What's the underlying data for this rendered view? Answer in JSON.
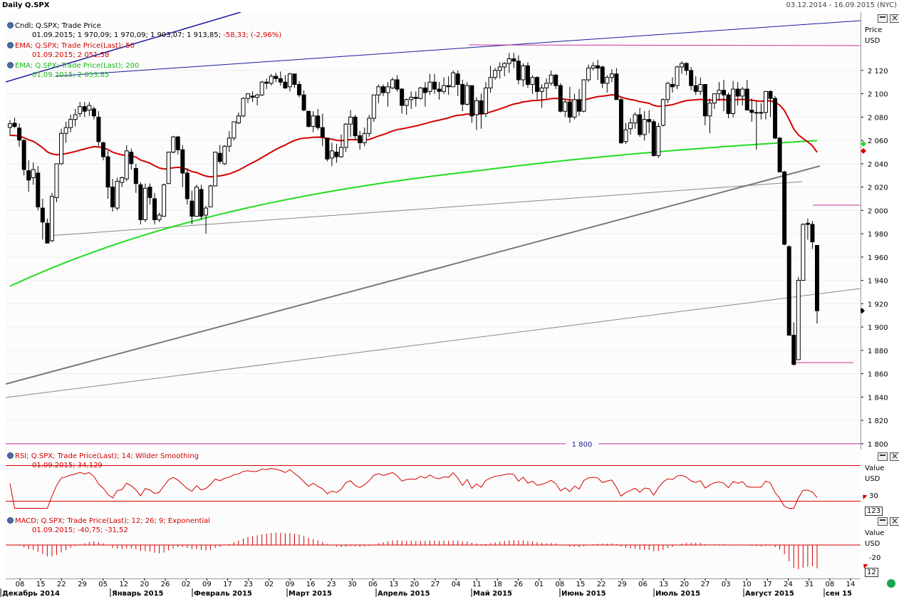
{
  "window": {
    "title": "Daily Q.SPX",
    "date_range": "03.12.2014 - 16.09.2015 (NYC)"
  },
  "colors": {
    "candle": "#000000",
    "ema50": "#d40000",
    "ema200": "#22dd22",
    "trend_blue": "#1a1a9e",
    "trend_gray": "#777777",
    "level_magenta": "#cc3399",
    "rsi": "#d40000",
    "macd": "#d40000"
  },
  "price_panel": {
    "legend": [
      {
        "name": "Cndl; Q.SPX; Trade Price",
        "values": "01.09.2015; 1 970,09; 1 970,09; 1 903,07; 1 913,85;",
        "change": "-58,33; (-2,96%)"
      },
      {
        "name": "EMA; Q.SPX; Trade Price(Last);  50",
        "values": "01.09.2015; 2 051,58"
      },
      {
        "name": "EMA; Q.SPX; Trade Price(Last);  200",
        "values": "01.09.2015; 2 053,85"
      }
    ],
    "axis_title_1": "Price",
    "axis_title_2": "USD",
    "level_label": "1 800"
  },
  "rsi_panel": {
    "legend_name": "RSI; Q.SPX; Trade Price(Last);  14; Wilder Smoothing",
    "legend_values": "01.09.2015; 34,129",
    "axis_title_1": "Value",
    "axis_title_2": "USD",
    "tick_label": "30",
    "current_label": "123"
  },
  "macd_panel": {
    "legend_name": "MACD; Q.SPX; Trade Price(Last);  12; 26; 9; Exponential",
    "legend_values": "01.09.2015; -40,75; -31,52",
    "axis_title_1": "Value",
    "axis_title_2": "USD",
    "tick_label": "-20",
    "current_label": "12"
  },
  "chart_data": {
    "type": "candlestick",
    "y_ticks": [
      "1 800",
      "1 820",
      "1 840",
      "1 860",
      "1 880",
      "1 900",
      "1 920",
      "1 940",
      "1 960",
      "1 980",
      "2 000",
      "2 020",
      "2 040",
      "2 060",
      "2 080",
      "2 100",
      "2 120"
    ],
    "ylim": [
      1795,
      2170
    ],
    "x_ticks": [
      "08",
      "15",
      "22",
      "29",
      "05",
      "12",
      "20",
      "26",
      "02",
      "09",
      "17",
      "23",
      "02",
      "09",
      "16",
      "23",
      "30",
      "06",
      "13",
      "20",
      "27",
      "04",
      "11",
      "18",
      "26",
      "01",
      "08",
      "15",
      "22",
      "29",
      "06",
      "13",
      "20",
      "27",
      "03",
      "10",
      "17",
      "24",
      "31",
      "08",
      "14"
    ],
    "x_months": [
      "Декабрь 2014",
      "Январь 2015",
      "Февраль 2015",
      "Март 2015",
      "Апрель 2015",
      "Май 2015",
      "Июнь 2015",
      "Июль 2015",
      "Август 2015",
      "сен 15"
    ],
    "candles": [
      [
        2071.2,
        2077.3,
        2064.3,
        2074.3
      ],
      [
        2074.8,
        2079.5,
        2070.8,
        2071.9
      ],
      [
        2070.6,
        2074.5,
        2054.5,
        2060.3
      ],
      [
        2060,
        2061,
        2030,
        2035
      ],
      [
        2034,
        2043,
        2016,
        2026
      ],
      [
        2028,
        2041,
        2022,
        2035
      ],
      [
        2032,
        2038,
        2000,
        2003
      ],
      [
        2002,
        2010,
        1975,
        1990
      ],
      [
        1989,
        1993,
        1972,
        1972
      ],
      [
        1974,
        2015,
        1973,
        2012
      ],
      [
        2011,
        2040,
        2007,
        2040
      ],
      [
        2040,
        2070,
        2039,
        2066
      ],
      [
        2066,
        2076,
        2058,
        2071
      ],
      [
        2071,
        2082,
        2067,
        2078
      ],
      [
        2078,
        2087,
        2072,
        2082
      ],
      [
        2083,
        2093,
        2080,
        2089
      ],
      [
        2089,
        2093,
        2080,
        2085
      ],
      [
        2086,
        2093,
        2081,
        2090
      ],
      [
        2087,
        2089,
        2078,
        2081
      ],
      [
        2080,
        2085,
        2055,
        2059
      ],
      [
        2058,
        2059,
        2043,
        2046
      ],
      [
        2046,
        2051,
        2010,
        2020
      ],
      [
        2020,
        2027,
        1999,
        2003
      ],
      [
        2002,
        2028,
        2000,
        2025
      ],
      [
        2024,
        2029,
        2020,
        2028
      ],
      [
        2027,
        2056,
        2025,
        2051
      ],
      [
        2050,
        2053,
        2035,
        2040
      ],
      [
        2036,
        2040,
        2015,
        2023
      ],
      [
        2022,
        2024,
        1988,
        1992
      ],
      [
        1992,
        2023,
        1990,
        2019
      ],
      [
        2020,
        2023,
        2005,
        2011
      ],
      [
        2010,
        2015,
        1988,
        1992
      ],
      [
        1992,
        1998,
        1990,
        1996
      ],
      [
        1995,
        2023,
        1995,
        2022
      ],
      [
        2023,
        2050,
        2023,
        2050
      ],
      [
        2050,
        2064,
        2049,
        2063
      ],
      [
        2063,
        2064,
        2048,
        2052
      ],
      [
        2052,
        2056,
        2020,
        2032
      ],
      [
        2032,
        2036,
        2005,
        2010
      ],
      [
        2008,
        2017,
        1988,
        1995
      ],
      [
        1995,
        2022,
        1995,
        2020
      ],
      [
        2018,
        2022,
        1992,
        1995
      ],
      [
        1996,
        2004,
        1980,
        2002
      ],
      [
        2003,
        2022,
        2003,
        2021
      ],
      [
        2021,
        2050,
        2021,
        2050
      ],
      [
        2049,
        2056,
        2040,
        2042
      ],
      [
        2040,
        2056,
        2039,
        2055
      ],
      [
        2055,
        2068,
        2050,
        2062
      ],
      [
        2062,
        2076,
        2060,
        2076
      ],
      [
        2075,
        2084,
        2074,
        2081
      ],
      [
        2081,
        2097,
        2080,
        2096
      ],
      [
        2096,
        2100,
        2092,
        2100
      ],
      [
        2098,
        2102,
        2093,
        2097
      ],
      [
        2097,
        2100,
        2090,
        2099
      ],
      [
        2099,
        2111,
        2098,
        2110
      ],
      [
        2110,
        2113,
        2104,
        2109
      ],
      [
        2109,
        2117,
        2107,
        2115
      ],
      [
        2115,
        2118,
        2110,
        2113
      ],
      [
        2113,
        2119,
        2107,
        2110
      ],
      [
        2110,
        2116,
        2104,
        2105
      ],
      [
        2106,
        2118,
        2102,
        2117
      ],
      [
        2117,
        2117,
        2105,
        2108
      ],
      [
        2108,
        2111,
        2097,
        2099
      ],
      [
        2099,
        2103,
        2085,
        2086
      ],
      [
        2085,
        2085,
        2071,
        2072
      ],
      [
        2072,
        2085,
        2067,
        2081
      ],
      [
        2081,
        2087,
        2069,
        2071
      ],
      [
        2071,
        2083,
        2055,
        2063
      ],
      [
        2062,
        2062,
        2042,
        2044
      ],
      [
        2045,
        2058,
        2038,
        2051
      ],
      [
        2050,
        2057,
        2041,
        2046
      ],
      [
        2046,
        2065,
        2045,
        2054
      ],
      [
        2054,
        2075,
        2050,
        2074
      ],
      [
        2074,
        2086,
        2063,
        2080
      ],
      [
        2080,
        2082,
        2060,
        2064
      ],
      [
        2064,
        2068,
        2052,
        2058
      ],
      [
        2058,
        2071,
        2055,
        2066
      ],
      [
        2066,
        2082,
        2063,
        2079
      ],
      [
        2079,
        2099,
        2076,
        2099
      ],
      [
        2099,
        2108,
        2092,
        2106
      ],
      [
        2106,
        2108,
        2098,
        2101
      ],
      [
        2101,
        2110,
        2089,
        2106
      ],
      [
        2105,
        2114,
        2104,
        2112
      ],
      [
        2112,
        2116,
        2102,
        2104
      ],
      [
        2104,
        2105,
        2083,
        2090
      ],
      [
        2090,
        2096,
        2082,
        2095
      ],
      [
        2095,
        2102,
        2087,
        2097
      ],
      [
        2097,
        2102,
        2089,
        2096
      ],
      [
        2096,
        2106,
        2095,
        2105
      ],
      [
        2105,
        2110,
        2089,
        2101
      ],
      [
        2102,
        2117,
        2099,
        2110
      ],
      [
        2110,
        2117,
        2100,
        2104
      ],
      [
        2104,
        2110,
        2095,
        2102
      ],
      [
        2102,
        2114,
        2100,
        2107
      ],
      [
        2107,
        2115,
        2099,
        2106
      ],
      [
        2106,
        2120,
        2106,
        2118
      ],
      [
        2117,
        2120,
        2098,
        2108
      ],
      [
        2108,
        2112,
        2085,
        2091
      ],
      [
        2091,
        2110,
        2090,
        2107
      ],
      [
        2107,
        2106,
        2075,
        2081
      ],
      [
        2082,
        2097,
        2069,
        2094
      ],
      [
        2094,
        2100,
        2070,
        2083
      ],
      [
        2083,
        2110,
        2080,
        2105
      ],
      [
        2105,
        2124,
        2101,
        2114
      ],
      [
        2114,
        2122,
        2112,
        2120
      ],
      [
        2120,
        2127,
        2113,
        2123
      ],
      [
        2123,
        2127,
        2115,
        2126
      ],
      [
        2126,
        2135,
        2118,
        2130
      ],
      [
        2130,
        2135,
        2122,
        2128
      ],
      [
        2128,
        2133,
        2108,
        2112
      ],
      [
        2112,
        2126,
        2106,
        2124
      ],
      [
        2124,
        2127,
        2105,
        2108
      ],
      [
        2108,
        2116,
        2100,
        2114
      ],
      [
        2114,
        2115,
        2095,
        2102
      ],
      [
        2102,
        2108,
        2088,
        2105
      ],
      [
        2105,
        2113,
        2096,
        2109
      ],
      [
        2109,
        2120,
        2107,
        2116
      ],
      [
        2116,
        2117,
        2104,
        2107
      ],
      [
        2107,
        2109,
        2084,
        2085
      ],
      [
        2085,
        2095,
        2080,
        2093
      ],
      [
        2093,
        2106,
        2075,
        2080
      ],
      [
        2080,
        2100,
        2078,
        2095
      ],
      [
        2095,
        2104,
        2081,
        2085
      ],
      [
        2085,
        2112,
        2084,
        2112
      ],
      [
        2112,
        2125,
        2110,
        2122
      ],
      [
        2122,
        2127,
        2120,
        2124
      ],
      [
        2124,
        2129,
        2112,
        2122
      ],
      [
        2123,
        2124,
        2105,
        2109
      ],
      [
        2109,
        2116,
        2101,
        2114
      ],
      [
        2114,
        2121,
        2110,
        2117
      ],
      [
        2117,
        2122,
        2095,
        2095
      ],
      [
        2095,
        2097,
        2057,
        2058
      ],
      [
        2059,
        2075,
        2057,
        2069
      ],
      [
        2070,
        2079,
        2065,
        2075
      ],
      [
        2075,
        2084,
        2070,
        2082
      ],
      [
        2082,
        2088,
        2063,
        2065
      ],
      [
        2065,
        2085,
        2060,
        2078
      ],
      [
        2078,
        2086,
        2066,
        2076
      ],
      [
        2076,
        2078,
        2046,
        2047
      ],
      [
        2047,
        2075,
        2045,
        2072
      ],
      [
        2073,
        2096,
        2072,
        2095
      ],
      [
        2095,
        2110,
        2092,
        2109
      ],
      [
        2108,
        2114,
        2101,
        2106
      ],
      [
        2107,
        2124,
        2104,
        2123
      ],
      [
        2123,
        2128,
        2117,
        2126
      ],
      [
        2126,
        2127,
        2116,
        2120
      ],
      [
        2120,
        2123,
        2103,
        2107
      ],
      [
        2107,
        2115,
        2099,
        2102
      ],
      [
        2102,
        2114,
        2099,
        2108
      ],
      [
        2108,
        2108,
        2073,
        2081
      ],
      [
        2081,
        2096,
        2066,
        2092
      ],
      [
        2092,
        2100,
        2087,
        2100
      ],
      [
        2100,
        2110,
        2094,
        2103
      ],
      [
        2103,
        2112,
        2085,
        2099
      ],
      [
        2099,
        2101,
        2079,
        2083
      ],
      [
        2083,
        2111,
        2080,
        2104
      ],
      [
        2104,
        2110,
        2090,
        2098
      ],
      [
        2098,
        2106,
        2090,
        2104
      ],
      [
        2104,
        2112,
        2086,
        2086
      ],
      [
        2086,
        2096,
        2076,
        2084
      ],
      [
        2084,
        2094,
        2052,
        2084
      ],
      [
        2084,
        2092,
        2078,
        2084
      ],
      [
        2084,
        2102,
        2078,
        2102
      ],
      [
        2102,
        2103,
        2080,
        2096
      ],
      [
        2096,
        2098,
        2061,
        2062
      ],
      [
        2062,
        2063,
        2033,
        2033
      ],
      [
        2033,
        2034,
        1970,
        1971
      ],
      [
        1969,
        1970,
        1893,
        1893
      ],
      [
        1893,
        1904,
        1867,
        1868
      ],
      [
        1872,
        1943,
        1872,
        1940
      ],
      [
        1940,
        1989,
        1940,
        1988
      ],
      [
        1989,
        1993,
        1975,
        1988
      ],
      [
        1988,
        1991,
        1967,
        1973
      ],
      [
        1970,
        1970,
        1903,
        1914
      ]
    ]
  }
}
